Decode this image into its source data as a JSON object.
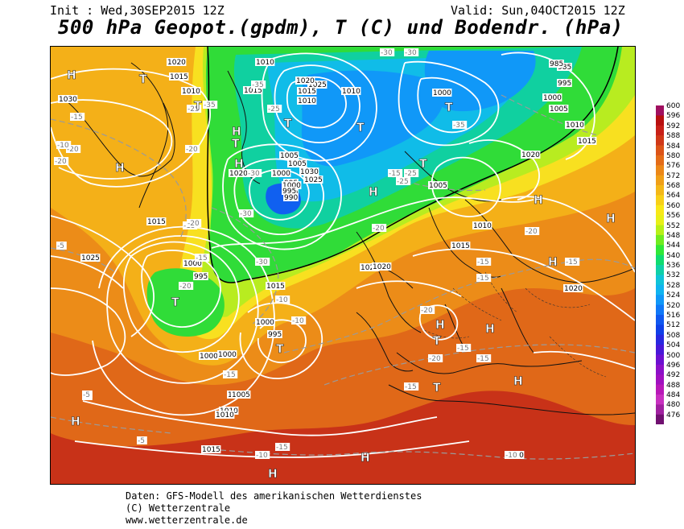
{
  "header": {
    "init": "Init : Wed,30SEP2015 12Z",
    "valid": "Valid: Sun,04OCT2015 12Z",
    "title": "500 hPa Geopot.(gpdm), T (C) und Bodendr. (hPa)"
  },
  "legend": {
    "levels": [
      "600",
      "596",
      "592",
      "588",
      "584",
      "580",
      "576",
      "572",
      "568",
      "564",
      "560",
      "556",
      "552",
      "548",
      "544",
      "540",
      "536",
      "532",
      "528",
      "524",
      "520",
      "516",
      "512",
      "508",
      "504",
      "500",
      "496",
      "492",
      "488",
      "484",
      "480",
      "476"
    ],
    "colors": [
      "#a01060",
      "#b81010",
      "#c82018",
      "#d03818",
      "#dc5418",
      "#e46c18",
      "#ec8818",
      "#f0a018",
      "#f4b818",
      "#f8d018",
      "#f8e818",
      "#e8f018",
      "#b8f018",
      "#70ec20",
      "#30e838",
      "#10dc70",
      "#10d0a8",
      "#10c4d8",
      "#10b4f0",
      "#1098f8",
      "#1078f8",
      "#1058f0",
      "#1040e8",
      "#2828e0",
      "#4818d8",
      "#6c10d0",
      "#8c10c8",
      "#a010c0",
      "#b818b8",
      "#c830c0",
      "#a020a0",
      "#701070"
    ]
  },
  "map": {
    "pressure_labels": [
      "1020",
      "1010",
      "1015",
      "1010",
      "1030",
      "1025",
      "1020",
      "1015",
      "1010",
      "1005",
      "1000",
      "995",
      "990",
      "985",
      "1030",
      "1025",
      "1020",
      "1015",
      "1010",
      "1005",
      "1000",
      "995",
      "990",
      "1000",
      "995",
      "1000",
      "1010",
      "1005",
      "1015",
      "1020",
      "1020",
      "1015",
      "1000",
      "1015",
      "1010",
      "1005",
      "1000",
      "995",
      "985",
      "995",
      "1000",
      "1005",
      "1010",
      "1015",
      "1020",
      "1020",
      "1010",
      "1005",
      "1000",
      "1015",
      "1020",
      "1025"
    ],
    "temperature_labels": [
      "-30",
      "-35",
      "-30",
      "-35",
      "-20",
      "-25",
      "-20",
      "-20",
      "-15",
      "-15",
      "-10",
      "-5",
      "-5",
      "-20",
      "-25",
      "-30",
      "-20",
      "-15",
      "-20",
      "-15",
      "-10",
      "-15",
      "-10",
      "-15",
      "-15",
      "-20",
      "-15",
      "-5",
      "-5",
      "-10",
      "-10",
      "-15",
      "-15",
      "-20",
      "-25",
      "-30",
      "-35",
      "-15",
      "-15",
      "-20",
      "-25",
      "-30"
    ],
    "high_symbol": "H",
    "low_symbol": "T"
  },
  "footer": {
    "line1": "Daten: GFS-Modell des amerikanischen Wetterdienstes",
    "line2": "(C) Wetterzentrale",
    "line3": "www.wetterzentrale.de"
  }
}
